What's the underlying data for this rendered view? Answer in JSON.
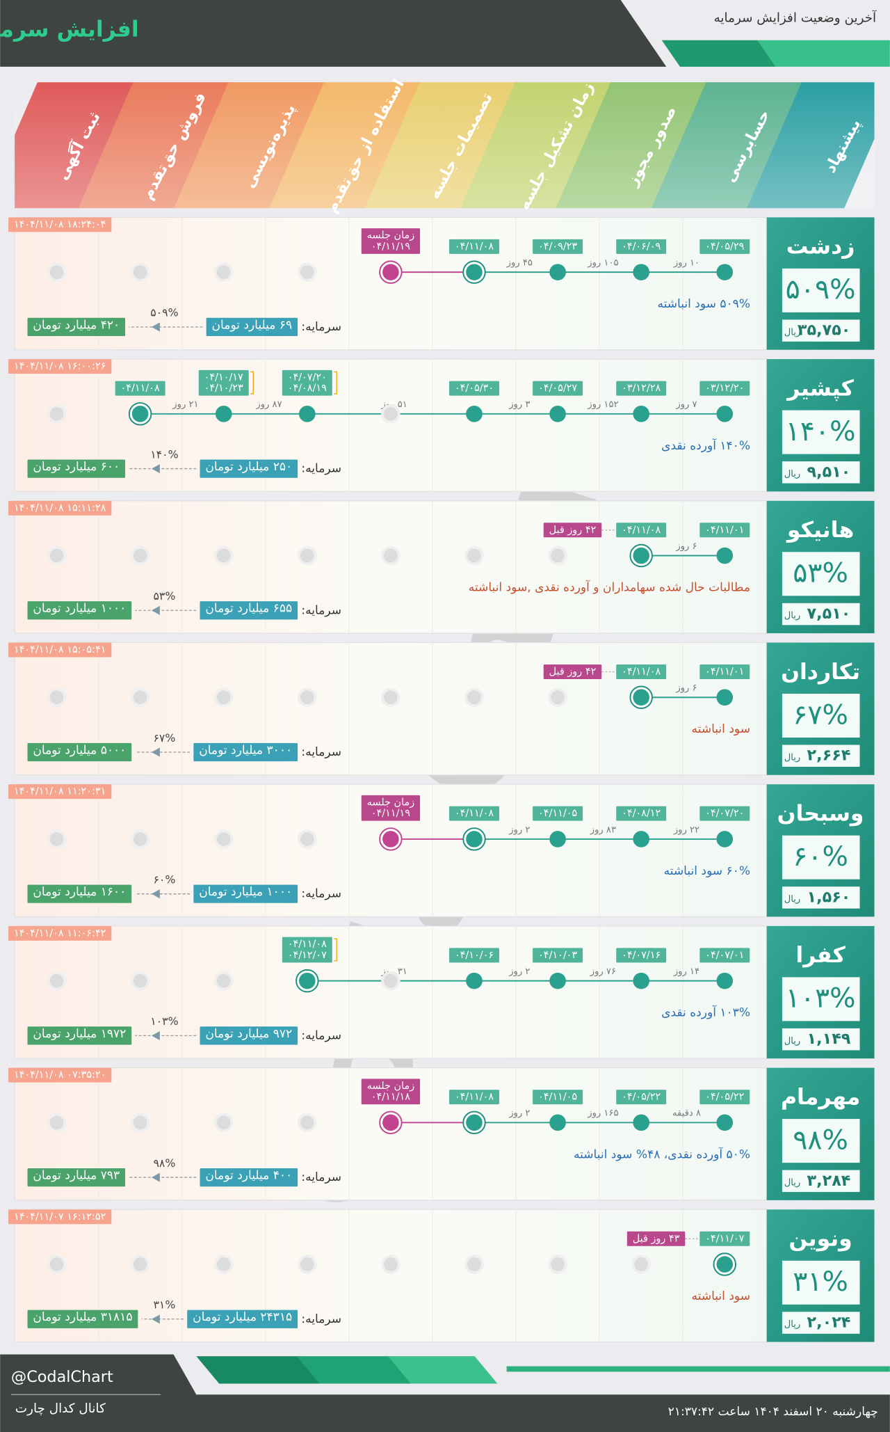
{
  "header": {
    "title": "افزایش سرمایه",
    "subtitle": "آخرین وضعیت افزایش سرمایه"
  },
  "stages": [
    "ثبت آگهی",
    "فروش حق‌تقدم",
    "پذیره‌نویسی",
    "استفاده از حق‌تقدم",
    "تصمیمات جلسه",
    "زمان تشکیل جلسه",
    "صدور مجوز",
    "حسابرسی",
    "پیشنهاد"
  ],
  "labels": {
    "capital": "سرمایه:",
    "currency": "ریال"
  },
  "watermark": "@CodalChart",
  "rows": [
    {
      "name": "زدشت",
      "percent": "۵۰۹%",
      "price": "۳۵,۷۵۰",
      "timestamp": "۱۴۰۴/۱۱/۰۸ ۱۸:۲۴:۰۴",
      "steps": [
        null,
        null,
        null,
        null,
        {
          "status": "meeting",
          "label": "زمان جلسه",
          "dates": [
            "۰۴/۱۱/۱۹"
          ]
        },
        {
          "status": "current",
          "dates": [
            "۰۴/۱۱/۰۸"
          ],
          "gap": "۴۵ روز"
        },
        {
          "status": "done",
          "dates": [
            "۰۴/۰۹/۲۳"
          ],
          "gap": "۱۰۵ روز"
        },
        {
          "status": "done",
          "dates": [
            "۰۴/۰۶/۰۹"
          ],
          "gap": "۱۰ روز"
        },
        {
          "status": "done",
          "dates": [
            "۰۴/۰۵/۲۹"
          ]
        }
      ],
      "description": "۵۰۹% سود انباشته",
      "description_color": "#2a6fb5",
      "capital": "۶۹ میلیارد تومان",
      "change": "۵۰۹%",
      "new_capital": "۴۲۰ میلیارد تومان"
    },
    {
      "name": "کپشیر",
      "percent": "۱۴۰%",
      "price": "۹,۵۱۰",
      "timestamp": "۱۴۰۴/۱۱/۰۸ ۱۶:۰۰:۲۶",
      "steps": [
        null,
        {
          "status": "current",
          "dates": [
            "۰۴/۱۱/۰۸"
          ],
          "gap": "۲۱ روز"
        },
        {
          "status": "done",
          "dates": [
            "۰۴/۱۰/۱۷",
            "۰۴/۱۰/۲۳"
          ],
          "gap": "۸۷ روز"
        },
        {
          "status": "done",
          "dates": [
            "۰۴/۰۷/۲۰",
            "۰۴/۰۸/۱۹"
          ],
          "gap": "۵۱ روز"
        },
        null,
        {
          "status": "done",
          "dates": [
            "۰۴/۰۵/۳۰"
          ],
          "gap": "۳ روز"
        },
        {
          "status": "done",
          "dates": [
            "۰۴/۰۵/۲۷"
          ],
          "gap": "۱۵۲ روز"
        },
        {
          "status": "done",
          "dates": [
            "۰۳/۱۲/۲۸"
          ],
          "gap": "۷ روز"
        },
        {
          "status": "done",
          "dates": [
            "۰۳/۱۲/۲۰"
          ]
        }
      ],
      "description": "۱۴۰% آورده نقدی",
      "description_color": "#2a6fb5",
      "capital": "۲۵۰ میلیارد تومان",
      "change": "۱۴۰%",
      "new_capital": "۶۰۰ میلیارد تومان"
    },
    {
      "name": "هانیکو",
      "percent": "۵۳%",
      "price": "۷,۵۱۰",
      "timestamp": "۱۴۰۴/۱۱/۰۸ ۱۵:۱۱:۲۸",
      "steps": [
        null,
        null,
        null,
        null,
        null,
        null,
        null,
        {
          "status": "current",
          "dates": [
            "۰۴/۱۱/۰۸"
          ],
          "gap": "۶ روز",
          "ago": "۴۲ روز قبل"
        },
        {
          "status": "done",
          "dates": [
            "۰۴/۱۱/۰۱"
          ]
        }
      ],
      "description": "مطالبات حال شده سهامداران و آورده نقدی ,سود انباشته",
      "description_color": "#c4502f",
      "capital": "۶۵۵ میلیارد تومان",
      "change": "۵۳%",
      "new_capital": "۱۰۰۰ میلیارد تومان"
    },
    {
      "name": "تکاردان",
      "percent": "۶۷%",
      "price": "۲,۶۶۴",
      "timestamp": "۱۴۰۴/۱۱/۰۸ ۱۵:۰۵:۴۱",
      "steps": [
        null,
        null,
        null,
        null,
        null,
        null,
        null,
        {
          "status": "current",
          "dates": [
            "۰۴/۱۱/۰۸"
          ],
          "gap": "۶ روز",
          "ago": "۴۲ روز قبل"
        },
        {
          "status": "done",
          "dates": [
            "۰۴/۱۱/۰۱"
          ]
        }
      ],
      "description": "سود انباشته",
      "description_color": "#c4502f",
      "capital": "۳۰۰۰ میلیارد تومان",
      "change": "۶۷%",
      "new_capital": "۵۰۰۰ میلیارد تومان"
    },
    {
      "name": "وسبحان",
      "percent": "۶۰%",
      "price": "۱,۵۶۰",
      "timestamp": "۱۴۰۴/۱۱/۰۸ ۱۱:۲۰:۳۱",
      "steps": [
        null,
        null,
        null,
        null,
        {
          "status": "meeting",
          "label": "زمان جلسه",
          "dates": [
            "۰۴/۱۱/۱۹"
          ]
        },
        {
          "status": "current",
          "dates": [
            "۰۴/۱۱/۰۸"
          ],
          "gap": "۲ روز"
        },
        {
          "status": "done",
          "dates": [
            "۰۴/۱۱/۰۵"
          ],
          "gap": "۸۳ روز"
        },
        {
          "status": "done",
          "dates": [
            "۰۴/۰۸/۱۲"
          ],
          "gap": "۲۲ روز"
        },
        {
          "status": "done",
          "dates": [
            "۰۴/۰۷/۲۰"
          ]
        }
      ],
      "description": "۶۰% سود انباشته",
      "description_color": "#2a6fb5",
      "capital": "۱۰۰۰ میلیارد تومان",
      "change": "۶۰%",
      "new_capital": "۱۶۰۰ میلیارد تومان"
    },
    {
      "name": "کفرا",
      "percent": "۱۰۳%",
      "price": "۱,۱۴۹",
      "timestamp": "۱۴۰۴/۱۱/۰۸ ۱۱:۰۶:۴۲",
      "steps": [
        null,
        null,
        null,
        {
          "status": "current",
          "dates": [
            "۰۴/۱۱/۰۸",
            "۰۴/۱۲/۰۷"
          ],
          "gap": "۳۱ روز"
        },
        null,
        {
          "status": "done",
          "dates": [
            "۰۴/۱۰/۰۶"
          ],
          "gap": "۲ روز"
        },
        {
          "status": "done",
          "dates": [
            "۰۴/۱۰/۰۳"
          ],
          "gap": "۷۶ روز"
        },
        {
          "status": "done",
          "dates": [
            "۰۴/۰۷/۱۶"
          ],
          "gap": "۱۴ روز"
        },
        {
          "status": "done",
          "dates": [
            "۰۴/۰۷/۰۱"
          ]
        }
      ],
      "description": "۱۰۳% آورده نقدی",
      "description_color": "#2a6fb5",
      "capital": "۹۷۲ میلیارد تومان",
      "change": "۱۰۳%",
      "new_capital": "۱۹۷۲ میلیارد تومان"
    },
    {
      "name": "مهرمام",
      "percent": "۹۸%",
      "price": "۳,۲۸۴",
      "timestamp": "۱۴۰۴/۱۱/۰۸ ۰۷:۳۵:۲۰",
      "steps": [
        null,
        null,
        null,
        null,
        {
          "status": "meeting",
          "label": "زمان جلسه",
          "dates": [
            "۰۴/۱۱/۱۸"
          ]
        },
        {
          "status": "current",
          "dates": [
            "۰۴/۱۱/۰۸"
          ],
          "gap": "۲ روز"
        },
        {
          "status": "done",
          "dates": [
            "۰۴/۱۱/۰۵"
          ],
          "gap": "۱۶۵ روز"
        },
        {
          "status": "done",
          "dates": [
            "۰۴/۰۵/۲۲"
          ],
          "gap": "۸ دقیقه"
        },
        {
          "status": "done",
          "dates": [
            "۰۴/۰۵/۲۲"
          ]
        }
      ],
      "description": "۵۰% آورده نقدی، ۴۸% سود انباشته",
      "description_color": "#2a6fb5",
      "capital": "۴۰۰ میلیارد تومان",
      "change": "۹۸%",
      "new_capital": "۷۹۳ میلیارد تومان"
    },
    {
      "name": "ونوین",
      "percent": "۳۱%",
      "price": "۲,۰۲۴",
      "timestamp": "۱۴۰۴/۱۱/۰۷ ۱۶:۱۲:۵۲",
      "steps": [
        null,
        null,
        null,
        null,
        null,
        null,
        null,
        null,
        {
          "status": "current",
          "dates": [
            "۰۴/۱۱/۰۷"
          ],
          "ago": "۴۳ روز قبل"
        }
      ],
      "description": "سود انباشته",
      "description_color": "#c4502f",
      "capital": "۲۴۳۱۵ میلیارد تومان",
      "change": "۳۱%",
      "new_capital": "۳۱۸۱۵ میلیارد تومان"
    }
  ],
  "footer": {
    "handle": "@CodalChart",
    "channel": "کانال کدال چارت",
    "datetime": "چهارشنبه ۲۰ اسفند ۱۴۰۴ ساعت ۲۱:۳۷:۴۲"
  }
}
